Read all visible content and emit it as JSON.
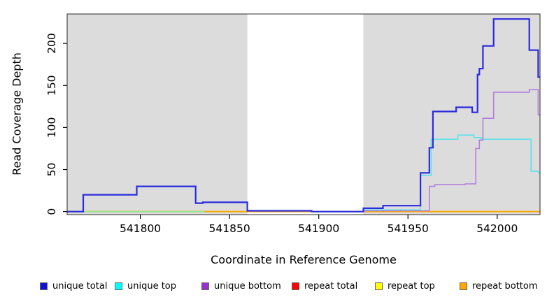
{
  "figure": {
    "kind": "R-style step plot of read coverage depth across a reference genome window"
  },
  "chart_data": {
    "type": "line",
    "line_style": "step",
    "title": "",
    "xlabel": "Coordinate in Reference Genome",
    "ylabel": "Read Coverage Depth",
    "xlim": [
      541759,
      542024
    ],
    "ylim": [
      -3.6,
      235
    ],
    "xticks": [
      541800,
      541850,
      541900,
      541950,
      542000
    ],
    "yticks": [
      0,
      50,
      100,
      150,
      200
    ],
    "grid": false,
    "panel_background": "#ffffff",
    "shaded_regions": [
      {
        "name": "masked-region-left",
        "from": 541759,
        "to": 541860,
        "color": "#DCDCDC"
      },
      {
        "name": "masked-region-right",
        "from": 541925,
        "to": 542024,
        "color": "#DCDCDC"
      }
    ],
    "zero_line_artifact": {
      "name": "overlapping-zero-lines",
      "comment": "pale green where unique-top and repeat-top lines overlap at depth 0",
      "color": "#8FE88F",
      "from": 541759,
      "to": 541836,
      "value": 0,
      "width": 1.6
    },
    "series": [
      {
        "name": "repeat top",
        "color": "#FFFF00",
        "width": 1.6,
        "points": [
          [
            541759,
            0
          ]
        ],
        "xend": 542024
      },
      {
        "name": "repeat bottom",
        "color": "#FFA500",
        "width": 1.8,
        "points": [
          [
            541759,
            0
          ]
        ],
        "xend": 542024
      },
      {
        "name": "repeat total",
        "color": "#EE5555",
        "width": 1.5,
        "points": [
          [
            541925,
            2
          ],
          [
            541936,
            0
          ]
        ],
        "xend": 541936
      },
      {
        "name": "unique top",
        "color": "#5CE2EC",
        "width": 1.6,
        "points": [
          [
            541925,
            2
          ],
          [
            541957,
            43
          ],
          [
            541963,
            86
          ],
          [
            541978,
            91
          ],
          [
            541987,
            88
          ],
          [
            541991,
            86
          ],
          [
            542019,
            48
          ],
          [
            542023,
            46
          ]
        ],
        "xend": 542024
      },
      {
        "name": "unique bottom",
        "color": "#B27FDB",
        "width": 1.6,
        "points": [
          [
            541925,
            1
          ],
          [
            541962,
            30
          ],
          [
            541965,
            32
          ],
          [
            541982,
            33
          ],
          [
            541988,
            75
          ],
          [
            541990,
            85
          ],
          [
            541992,
            111
          ],
          [
            541998,
            142
          ],
          [
            542018,
            145
          ],
          [
            542023,
            115
          ]
        ],
        "xend": 542024
      },
      {
        "name": "unique total",
        "color": "#2B2BE0",
        "width": 2.2,
        "points": [
          [
            541759,
            0
          ],
          [
            541768,
            20
          ],
          [
            541798,
            30
          ],
          [
            541831,
            10
          ],
          [
            541835,
            11
          ],
          [
            541860,
            1
          ],
          [
            541896,
            0
          ],
          [
            541925,
            4
          ],
          [
            541936,
            7
          ],
          [
            541957,
            46
          ],
          [
            541962,
            76
          ],
          [
            541964,
            119
          ],
          [
            541977,
            124
          ],
          [
            541986,
            118
          ],
          [
            541989,
            163
          ],
          [
            541990,
            170
          ],
          [
            541992,
            197
          ],
          [
            541998,
            229
          ],
          [
            542018,
            192
          ],
          [
            542023,
            160
          ]
        ],
        "xend": 542024
      }
    ],
    "legend_position": "bottom"
  },
  "legend": {
    "items": [
      {
        "label": "unique total",
        "color": "#1010D8"
      },
      {
        "label": "unique top",
        "color": "#00FFFF"
      },
      {
        "label": "unique bottom",
        "color": "#9932CC"
      },
      {
        "label": "repeat total",
        "color": "#FF0000"
      },
      {
        "label": "repeat top",
        "color": "#FFFF00"
      },
      {
        "label": "repeat bottom",
        "color": "#FFA500"
      }
    ]
  }
}
